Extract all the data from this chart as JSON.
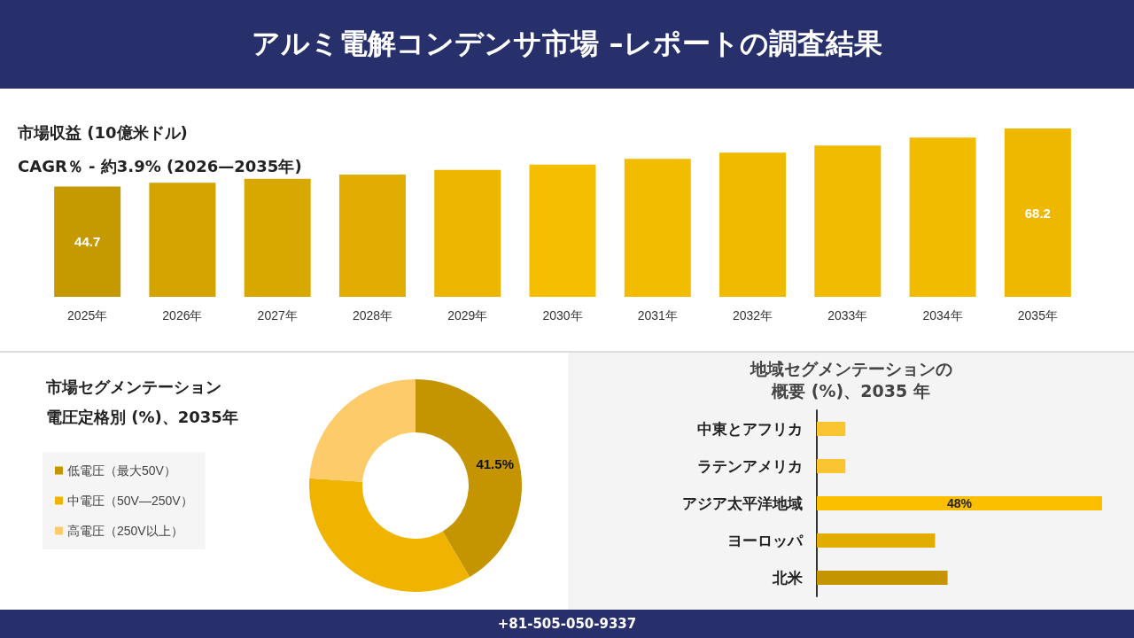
{
  "chart_data": [
    {
      "type": "bar",
      "title": "アルミ電解コンデンサ市場 –レポートの調査結果",
      "ylabel": "市場収益 (10億米ドル)",
      "subtitle": "CAGR％ - 約3.9% (2026—2035年)",
      "categories": [
        "2025年",
        "2026年",
        "2027年",
        "2028年",
        "2029年",
        "2030年",
        "2031年",
        "2032年",
        "2033年",
        "2034年",
        "2035年"
      ],
      "values": [
        44.7,
        46.2,
        47.8,
        49.5,
        51.4,
        53.6,
        55.9,
        58.4,
        61.3,
        64.5,
        68.2
      ],
      "colors": [
        "#c49a00",
        "#d4a300",
        "#d9a800",
        "#e0ad00",
        "#ebb500",
        "#f5bf00",
        "#f2bc00",
        "#efba00",
        "#f0bb00",
        "#f1bc00",
        "#eeb800"
      ],
      "value_labels": [
        "44.7",
        null,
        null,
        null,
        null,
        null,
        null,
        null,
        null,
        null,
        "68.2"
      ],
      "tick_labels": "x",
      "annotations": [
        "+81-505-050-9337"
      ]
    },
    {
      "type": "donut",
      "title": "市場セグメンテーション",
      "subtitle": "電圧定格別 (%)、2035年",
      "categories": [
        "低電圧（最大50V）",
        "中電圧（50V—250V）",
        "高電圧（250V以上）"
      ],
      "values": [
        41.5,
        34.6,
        23.9
      ],
      "colors": [
        "#c49500",
        "#f0b400",
        "#fecb6a"
      ],
      "value_labels": [
        "41.5%",
        null,
        null
      ],
      "legend": "left"
    },
    {
      "type": "bar",
      "orientation": "horizontal",
      "title": "地域セグメンテーションの",
      "subtitle": "概要 (%)、2035 年",
      "categories": [
        "中東とアフリカ",
        "ラテンアメリカ",
        "アジア太平洋地域",
        "ヨーロッパ",
        "北米"
      ],
      "values": [
        4.8,
        4.8,
        48,
        19.9,
        22
      ],
      "colors": [
        "#fbc531",
        "#fbc531",
        "#fbbf00",
        "#e3ad00",
        "#c49500"
      ],
      "value_labels": [
        null,
        null,
        "48%",
        null,
        null
      ],
      "tick_labels": "y"
    }
  ]
}
